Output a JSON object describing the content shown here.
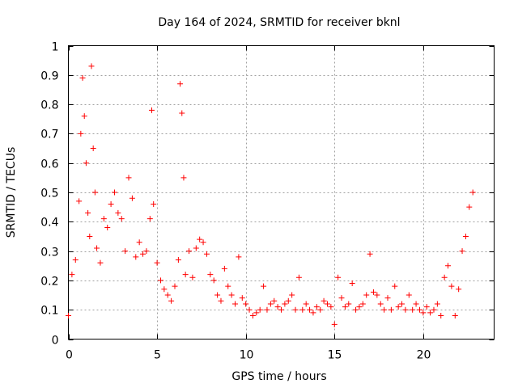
{
  "chart_data": {
    "type": "scatter",
    "title": "Day 164 of 2024, SRMTID for receiver bknl",
    "xlabel": "GPS time / hours",
    "ylabel": "SRMTID / TECUs",
    "xlim": [
      0,
      24
    ],
    "ylim": [
      0,
      1
    ],
    "xticks": [
      0,
      5,
      10,
      15,
      20
    ],
    "xtick_labels": [
      "0",
      "5",
      "10",
      "15",
      "20"
    ],
    "yticks": [
      0,
      0.1,
      0.2,
      0.3,
      0.4,
      0.5,
      0.6,
      0.7,
      0.8,
      0.9,
      1
    ],
    "ytick_labels": [
      "0",
      "0.1",
      "0.2",
      "0.3",
      "0.4",
      "0.5",
      "0.6",
      "0.7",
      "0.8",
      "0.9",
      "1"
    ],
    "grid": true,
    "marker": "plus",
    "series": [
      {
        "name": "bknl",
        "color": "#ff0000",
        "x": [
          0.0,
          0.2,
          0.4,
          0.6,
          0.7,
          0.8,
          0.9,
          1.0,
          1.1,
          1.2,
          1.3,
          1.4,
          1.5,
          1.6,
          1.8,
          2.0,
          2.2,
          2.4,
          2.6,
          2.8,
          3.0,
          3.2,
          3.4,
          3.6,
          3.8,
          4.0,
          4.2,
          4.4,
          4.6,
          4.7,
          4.8,
          5.0,
          5.2,
          5.4,
          5.6,
          5.8,
          6.0,
          6.2,
          6.3,
          6.4,
          6.5,
          6.6,
          6.8,
          7.0,
          7.2,
          7.4,
          7.6,
          7.8,
          8.0,
          8.2,
          8.4,
          8.6,
          8.8,
          9.0,
          9.2,
          9.4,
          9.6,
          9.8,
          10.0,
          10.2,
          10.4,
          10.6,
          10.8,
          11.0,
          11.2,
          11.4,
          11.6,
          11.8,
          12.0,
          12.2,
          12.4,
          12.6,
          12.8,
          13.0,
          13.2,
          13.4,
          13.6,
          13.8,
          14.0,
          14.2,
          14.4,
          14.6,
          14.8,
          15.0,
          15.2,
          15.4,
          15.6,
          15.8,
          16.0,
          16.2,
          16.4,
          16.6,
          16.8,
          17.0,
          17.2,
          17.4,
          17.6,
          17.8,
          18.0,
          18.2,
          18.4,
          18.6,
          18.8,
          19.0,
          19.2,
          19.4,
          19.6,
          19.8,
          20.0,
          20.2,
          20.4,
          20.6,
          20.8,
          21.0,
          21.2,
          21.4,
          21.6,
          21.8,
          22.0,
          22.2,
          22.4,
          22.6,
          22.8
        ],
        "y": [
          0.08,
          0.22,
          0.27,
          0.47,
          0.7,
          0.89,
          0.76,
          0.6,
          0.43,
          0.35,
          0.93,
          0.65,
          0.5,
          0.31,
          0.26,
          0.41,
          0.38,
          0.46,
          0.5,
          0.43,
          0.41,
          0.3,
          0.55,
          0.48,
          0.28,
          0.33,
          0.29,
          0.3,
          0.41,
          0.78,
          0.46,
          0.26,
          0.2,
          0.17,
          0.15,
          0.13,
          0.18,
          0.27,
          0.87,
          0.77,
          0.55,
          0.22,
          0.3,
          0.21,
          0.31,
          0.34,
          0.33,
          0.29,
          0.22,
          0.2,
          0.15,
          0.13,
          0.24,
          0.18,
          0.15,
          0.12,
          0.28,
          0.14,
          0.12,
          0.1,
          0.08,
          0.09,
          0.1,
          0.18,
          0.1,
          0.12,
          0.13,
          0.11,
          0.1,
          0.12,
          0.13,
          0.15,
          0.1,
          0.21,
          0.1,
          0.12,
          0.1,
          0.09,
          0.11,
          0.1,
          0.13,
          0.12,
          0.11,
          0.05,
          0.21,
          0.14,
          0.11,
          0.12,
          0.19,
          0.1,
          0.11,
          0.12,
          0.15,
          0.29,
          0.16,
          0.15,
          0.12,
          0.1,
          0.14,
          0.1,
          0.18,
          0.11,
          0.12,
          0.1,
          0.15,
          0.1,
          0.12,
          0.1,
          0.09,
          0.11,
          0.09,
          0.1,
          0.12,
          0.08,
          0.21,
          0.25,
          0.18,
          0.08,
          0.17,
          0.3,
          0.35,
          0.45,
          0.5
        ]
      }
    ]
  }
}
